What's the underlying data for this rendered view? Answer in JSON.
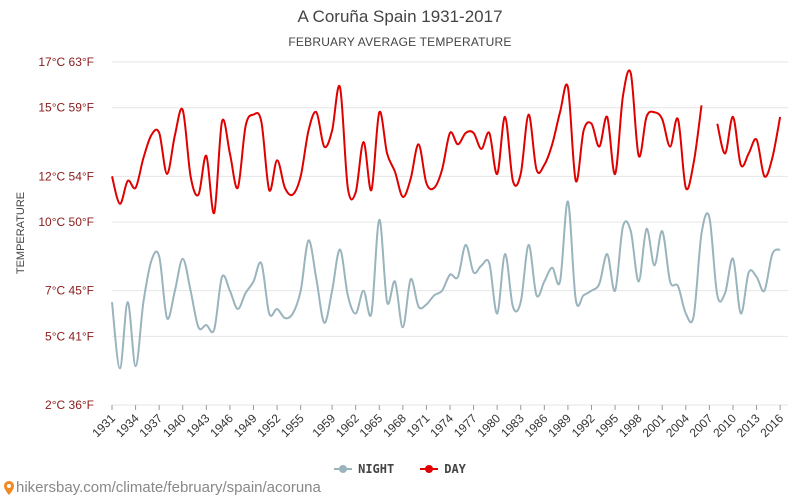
{
  "header": {
    "title": "A Coruña Spain 1931-2017",
    "subtitle": "FEBRUARY AVERAGE TEMPERATURE"
  },
  "footer": {
    "url": "hikersbay.com/climate/february/spain/acoruna"
  },
  "colors": {
    "day": "#e00000",
    "night": "#9ab4bd",
    "grid": "#e6e6e6",
    "ytick": "#8b1a1a",
    "xtick": "#333333"
  },
  "chart_data": {
    "type": "line",
    "ylabel": "TEMPERATURE",
    "ylim": [
      2,
      17
    ],
    "y_ticks": [
      {
        "value": 2,
        "label": "2°C 36°F"
      },
      {
        "value": 5,
        "label": "5°C 41°F"
      },
      {
        "value": 7,
        "label": "7°C 45°F"
      },
      {
        "value": 10,
        "label": "10°C 50°F"
      },
      {
        "value": 12,
        "label": "12°C 54°F"
      },
      {
        "value": 15,
        "label": "15°C 59°F"
      },
      {
        "value": 17,
        "label": "17°C 63°F"
      }
    ],
    "xlim": [
      1931,
      2017
    ],
    "x_tick_labels": [
      "1931",
      "1934",
      "1937",
      "1940",
      "1943",
      "1946",
      "1949",
      "1952",
      "1955",
      "1959",
      "1962",
      "1965",
      "1968",
      "1971",
      "1974",
      "1977",
      "1980",
      "1983",
      "1986",
      "1989",
      "1992",
      "1995",
      "1998",
      "2001",
      "2004",
      "2007",
      "2010",
      "2013",
      "2016"
    ],
    "legend": [
      {
        "name": "NIGHT",
        "color": "#9ab4bd"
      },
      {
        "name": "DAY",
        "color": "#e00000"
      }
    ],
    "series": [
      {
        "name": "DAY",
        "color": "#e00000",
        "points": [
          [
            1931,
            12.0
          ],
          [
            1932,
            10.8
          ],
          [
            1933,
            11.8
          ],
          [
            1934,
            11.5
          ],
          [
            1935,
            12.8
          ],
          [
            1936,
            13.8
          ],
          [
            1937,
            13.9
          ],
          [
            1938,
            12.1
          ],
          [
            1939,
            13.8
          ],
          [
            1940,
            14.9
          ],
          [
            1941,
            12.0
          ],
          [
            1942,
            11.2
          ],
          [
            1943,
            12.9
          ],
          [
            1944,
            10.4
          ],
          [
            1945,
            14.4
          ],
          [
            1946,
            13.0
          ],
          [
            1947,
            11.5
          ],
          [
            1948,
            14.2
          ],
          [
            1949,
            14.7
          ],
          [
            1950,
            14.4
          ],
          [
            1951,
            11.4
          ],
          [
            1952,
            12.7
          ],
          [
            1953,
            11.5
          ],
          [
            1954,
            11.2
          ],
          [
            1955,
            12.0
          ],
          [
            1956,
            14.0
          ],
          [
            1957,
            14.8
          ],
          [
            1958,
            13.3
          ],
          [
            1959,
            14.0
          ],
          [
            1960,
            15.9
          ],
          [
            1961,
            11.5
          ],
          [
            1962,
            11.3
          ],
          [
            1963,
            13.5
          ],
          [
            1964,
            11.4
          ],
          [
            1965,
            14.8
          ],
          [
            1966,
            13.0
          ],
          [
            1967,
            12.2
          ],
          [
            1968,
            11.1
          ],
          [
            1969,
            11.9
          ],
          [
            1970,
            13.4
          ],
          [
            1971,
            11.7
          ],
          [
            1972,
            11.5
          ],
          [
            1973,
            12.3
          ],
          [
            1974,
            13.9
          ],
          [
            1975,
            13.4
          ],
          [
            1976,
            13.9
          ],
          [
            1977,
            13.9
          ],
          [
            1978,
            13.2
          ],
          [
            1979,
            13.9
          ],
          [
            1980,
            12.1
          ],
          [
            1981,
            14.6
          ],
          [
            1982,
            11.8
          ],
          [
            1983,
            12.1
          ],
          [
            1984,
            14.7
          ],
          [
            1985,
            12.3
          ],
          [
            1986,
            12.5
          ],
          [
            1987,
            13.4
          ],
          [
            1988,
            14.8
          ],
          [
            1989,
            15.9
          ],
          [
            1990,
            11.8
          ],
          [
            1991,
            14.0
          ],
          [
            1992,
            14.3
          ],
          [
            1993,
            13.3
          ],
          [
            1994,
            14.6
          ],
          [
            1995,
            12.1
          ],
          [
            1996,
            15.5
          ],
          [
            1997,
            16.5
          ],
          [
            1998,
            12.9
          ],
          [
            1999,
            14.6
          ],
          [
            2000,
            14.8
          ],
          [
            2001,
            14.5
          ],
          [
            2002,
            13.3
          ],
          [
            2003,
            14.5
          ],
          [
            2004,
            11.5
          ],
          [
            2005,
            12.6
          ],
          [
            2006,
            15.1
          ],
          null,
          [
            2008,
            14.3
          ],
          [
            2009,
            13.0
          ],
          [
            2010,
            14.6
          ],
          [
            2011,
            12.5
          ],
          [
            2012,
            13.0
          ],
          [
            2013,
            13.6
          ],
          [
            2014,
            12.0
          ],
          [
            2015,
            12.8
          ],
          [
            2016,
            14.6
          ]
        ]
      },
      {
        "name": "NIGHT",
        "color": "#9ab4bd",
        "points": [
          [
            1931,
            6.5
          ],
          [
            1932,
            3.6
          ],
          [
            1933,
            6.5
          ],
          [
            1934,
            3.7
          ],
          [
            1935,
            6.5
          ],
          [
            1936,
            8.3
          ],
          [
            1937,
            8.5
          ],
          [
            1938,
            5.8
          ],
          [
            1939,
            7.0
          ],
          [
            1940,
            8.4
          ],
          [
            1941,
            7.0
          ],
          [
            1942,
            5.4
          ],
          [
            1943,
            5.5
          ],
          [
            1944,
            5.3
          ],
          [
            1945,
            7.6
          ],
          [
            1946,
            7.0
          ],
          [
            1947,
            6.2
          ],
          [
            1948,
            6.9
          ],
          [
            1949,
            7.4
          ],
          [
            1950,
            8.2
          ],
          [
            1951,
            6.0
          ],
          [
            1952,
            6.2
          ],
          [
            1953,
            5.8
          ],
          [
            1954,
            6.0
          ],
          [
            1955,
            7.0
          ],
          [
            1956,
            9.2
          ],
          [
            1957,
            7.5
          ],
          [
            1958,
            5.6
          ],
          [
            1959,
            7.0
          ],
          [
            1960,
            8.8
          ],
          [
            1961,
            6.8
          ],
          [
            1962,
            6.0
          ],
          [
            1963,
            7.0
          ],
          [
            1964,
            6.0
          ],
          [
            1965,
            10.1
          ],
          [
            1966,
            6.5
          ],
          [
            1967,
            7.4
          ],
          [
            1968,
            5.4
          ],
          [
            1969,
            7.5
          ],
          [
            1970,
            6.3
          ],
          [
            1971,
            6.4
          ],
          [
            1972,
            6.8
          ],
          [
            1973,
            7.0
          ],
          [
            1974,
            7.7
          ],
          [
            1975,
            7.6
          ],
          [
            1976,
            9.0
          ],
          [
            1977,
            7.8
          ],
          [
            1978,
            8.1
          ],
          [
            1979,
            8.2
          ],
          [
            1980,
            6.0
          ],
          [
            1981,
            8.6
          ],
          [
            1982,
            6.3
          ],
          [
            1983,
            6.5
          ],
          [
            1984,
            9.0
          ],
          [
            1985,
            6.8
          ],
          [
            1986,
            7.4
          ],
          [
            1987,
            8.0
          ],
          [
            1988,
            7.4
          ],
          [
            1989,
            10.9
          ],
          [
            1990,
            6.6
          ],
          [
            1991,
            6.8
          ],
          [
            1992,
            7.0
          ],
          [
            1993,
            7.3
          ],
          [
            1994,
            8.6
          ],
          [
            1995,
            7.0
          ],
          [
            1996,
            9.8
          ],
          [
            1997,
            9.6
          ],
          [
            1998,
            7.4
          ],
          [
            1999,
            9.7
          ],
          [
            2000,
            8.1
          ],
          [
            2001,
            9.6
          ],
          [
            2002,
            7.4
          ],
          [
            2003,
            7.2
          ],
          [
            2004,
            6.0
          ],
          [
            2005,
            5.9
          ],
          [
            2006,
            9.5
          ],
          [
            2007,
            10.2
          ],
          [
            2008,
            6.8
          ],
          [
            2009,
            6.9
          ],
          [
            2010,
            8.4
          ],
          [
            2011,
            6.0
          ],
          [
            2012,
            7.8
          ],
          [
            2013,
            7.6
          ],
          [
            2014,
            7.0
          ],
          [
            2015,
            8.6
          ],
          [
            2016,
            8.8
          ]
        ]
      }
    ]
  }
}
